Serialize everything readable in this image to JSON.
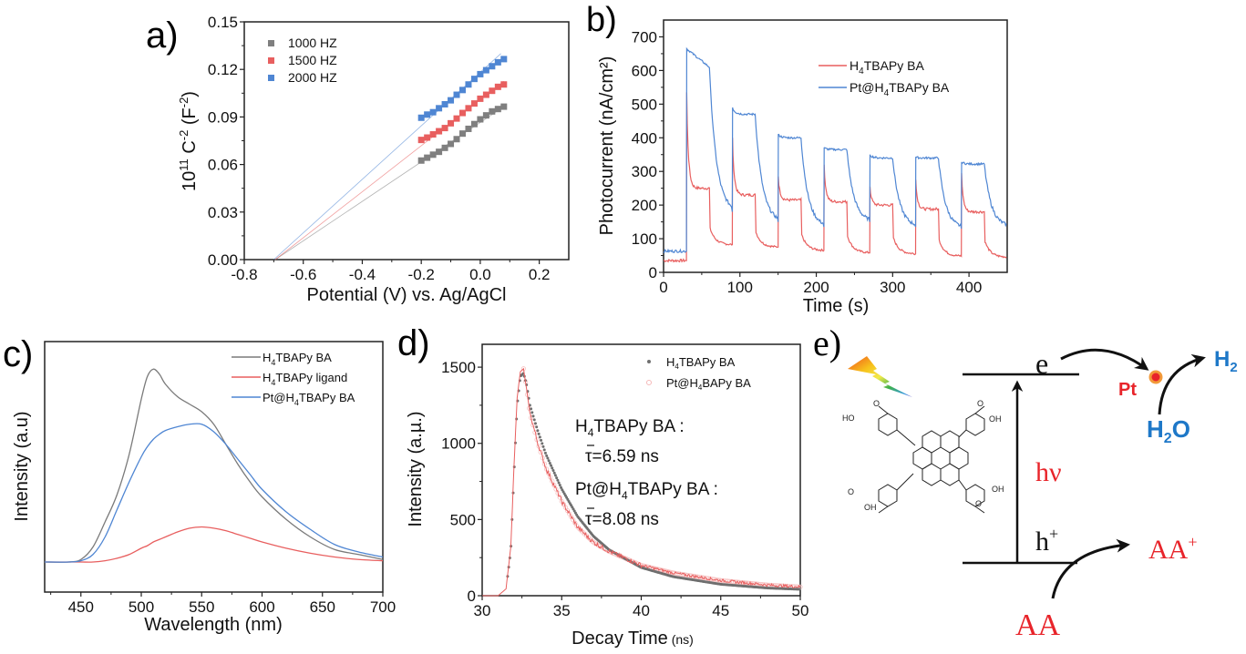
{
  "chart_data": [
    {
      "panel": "a)",
      "type": "scatter",
      "title": "",
      "xlabel": "Potential (V) vs. Ag/AgCl",
      "ylabel": "10^11 C^-2 (F^-2)",
      "ylabel_parts": {
        "base": "10",
        "exp1": "11",
        "mid": " C",
        "exp2": "-2",
        "mid2": " (F",
        "exp3": "-2",
        "end": ")"
      },
      "xlim": [
        -0.8,
        0.3
      ],
      "ylim": [
        0,
        0.15
      ],
      "xticks": [
        -0.8,
        -0.6,
        -0.4,
        -0.2,
        0.0,
        0.2
      ],
      "xtick_labels": [
        "-0.8",
        "-0.6",
        "-0.4",
        "-0.2",
        "0.0",
        "0.2"
      ],
      "yticks": [
        0,
        0.03,
        0.06,
        0.09,
        0.12,
        0.15
      ],
      "ytick_labels": [
        "0.00",
        "0.03",
        "0.06",
        "0.09",
        "0.12",
        "0.15"
      ],
      "legend_position": "top-left",
      "x": [
        -0.2,
        -0.18,
        -0.16,
        -0.14,
        -0.12,
        -0.1,
        -0.08,
        -0.06,
        -0.04,
        -0.02,
        0.0,
        0.02,
        0.04,
        0.06,
        0.08
      ],
      "series": [
        {
          "name": "1000 HZ",
          "color": "#7f7f7f",
          "values": [
            0.0625,
            0.0643,
            0.0662,
            0.068,
            0.0705,
            0.073,
            0.076,
            0.0795,
            0.0825,
            0.0855,
            0.0885,
            0.091,
            0.0935,
            0.095,
            0.0965
          ],
          "fit": {
            "x0": -0.695,
            "x1": 0.08,
            "y1": 0.0965
          }
        },
        {
          "name": "1500 HZ",
          "color": "#e85f5f",
          "values": [
            0.0755,
            0.077,
            0.079,
            0.081,
            0.083,
            0.086,
            0.089,
            0.0925,
            0.0955,
            0.0985,
            0.1015,
            0.104,
            0.1065,
            0.109,
            0.1105
          ],
          "fit": {
            "x0": -0.695,
            "x1": 0.08,
            "y1": 0.1125
          }
        },
        {
          "name": "2000 HZ",
          "color": "#4f86d3",
          "values": [
            0.0895,
            0.0915,
            0.093,
            0.0955,
            0.098,
            0.1005,
            0.104,
            0.107,
            0.1105,
            0.114,
            0.117,
            0.1195,
            0.122,
            0.1245,
            0.1265
          ],
          "fit": {
            "x0": -0.7,
            "x1": 0.07,
            "y1": 0.13
          }
        }
      ]
    },
    {
      "panel": "b)",
      "type": "line",
      "xlabel": "Time (s)",
      "ylabel": "Photocurrent (nA/cm²)",
      "xlim": [
        0,
        450
      ],
      "ylim": [
        0,
        750
      ],
      "xticks": [
        0,
        100,
        200,
        300,
        400
      ],
      "xtick_labels": [
        "0",
        "100",
        "200",
        "300",
        "400"
      ],
      "yticks": [
        0,
        100,
        200,
        300,
        400,
        500,
        600,
        700
      ],
      "ytick_labels": [
        "0",
        "100",
        "200",
        "300",
        "400",
        "500",
        "600",
        "700"
      ],
      "legend_position": "top-right",
      "light_on_times": [
        30,
        90,
        150,
        210,
        270,
        330,
        390
      ],
      "light_off_times": [
        60,
        120,
        180,
        240,
        300,
        360,
        420
      ],
      "series": [
        {
          "name": "H4TBAPy BA",
          "legend": {
            "a": "H",
            "sub": "4",
            "b": "TBAPy BA"
          },
          "color": "#e85f5f",
          "dark_baseline": 35,
          "cycles": [
            {
              "spike": 535,
              "plateau": 250,
              "dark_end": 82
            },
            {
              "spike": 400,
              "plateau": 230,
              "dark_end": 75
            },
            {
              "spike": 285,
              "plateau": 215,
              "dark_end": 65
            },
            {
              "spike": 320,
              "plateau": 210,
              "dark_end": 58
            },
            {
              "spike": 255,
              "plateau": 200,
              "dark_end": 55
            },
            {
              "spike": 275,
              "plateau": 188,
              "dark_end": 48
            },
            {
              "spike": 295,
              "plateau": 180,
              "dark_end": 45
            }
          ]
        },
        {
          "name": "Pt@H4TBAPy BA",
          "legend": {
            "a": "Pt@H",
            "sub": "4",
            "b": "TBAPy BA"
          },
          "color": "#4f86d3",
          "dark_baseline": 63,
          "cycles": [
            {
              "spike": 665,
              "plateau": 610,
              "dark_end": 180
            },
            {
              "spike": 490,
              "plateau": 470,
              "dark_end": 150
            },
            {
              "spike": 410,
              "plateau": 400,
              "dark_end": 135
            },
            {
              "spike": 370,
              "plateau": 365,
              "dark_end": 150
            },
            {
              "spike": 350,
              "plateau": 340,
              "dark_end": 135
            },
            {
              "spike": 342,
              "plateau": 340,
              "dark_end": 130
            },
            {
              "spike": 328,
              "plateau": 322,
              "dark_end": 135
            }
          ]
        }
      ]
    },
    {
      "panel": "c)",
      "type": "line",
      "xlabel": "Wavelength (nm)",
      "ylabel": "Intensity (a.u)",
      "xlim": [
        420,
        700
      ],
      "ylim": [
        0,
        1
      ],
      "xticks": [
        450,
        500,
        550,
        600,
        650,
        700
      ],
      "xtick_labels": [
        "450",
        "500",
        "550",
        "600",
        "650",
        "700"
      ],
      "legend_position": "top-right",
      "x": [
        420,
        440,
        450,
        460,
        470,
        480,
        490,
        500,
        505,
        510,
        515,
        520,
        530,
        540,
        550,
        560,
        570,
        580,
        590,
        600,
        620,
        640,
        660,
        680,
        700
      ],
      "series": [
        {
          "name": "H4TBAPy BA",
          "legend": {
            "a": "H",
            "sub": "4",
            "b": "TBAPy BA"
          },
          "color": "#7a7a7a",
          "values": [
            0.12,
            0.12,
            0.13,
            0.18,
            0.28,
            0.39,
            0.55,
            0.77,
            0.86,
            0.89,
            0.87,
            0.83,
            0.78,
            0.75,
            0.72,
            0.67,
            0.59,
            0.51,
            0.44,
            0.38,
            0.29,
            0.22,
            0.17,
            0.15,
            0.13
          ]
        },
        {
          "name": "H4TBAPy ligand",
          "legend": {
            "a": "H",
            "sub": "4",
            "b": "TBAPy ligand"
          },
          "color": "#e85f5f",
          "values": [
            0.12,
            0.12,
            0.12,
            0.12,
            0.125,
            0.135,
            0.15,
            0.175,
            0.185,
            0.2,
            0.21,
            0.22,
            0.24,
            0.255,
            0.26,
            0.255,
            0.245,
            0.23,
            0.215,
            0.2,
            0.175,
            0.155,
            0.14,
            0.13,
            0.125
          ]
        },
        {
          "name": "Pt@H4TBAPy BA",
          "legend": {
            "a": "Pt@H",
            "sub": "4",
            "b": "TBAPy BA"
          },
          "color": "#4f86d3",
          "values": [
            0.12,
            0.12,
            0.125,
            0.15,
            0.22,
            0.33,
            0.44,
            0.54,
            0.58,
            0.61,
            0.63,
            0.645,
            0.66,
            0.67,
            0.67,
            0.64,
            0.59,
            0.53,
            0.47,
            0.41,
            0.32,
            0.25,
            0.19,
            0.16,
            0.14
          ]
        }
      ]
    },
    {
      "panel": "d)",
      "type": "line",
      "xlabel": "Decay Time",
      "xlabel_unit": "(ns)",
      "ylabel": "Intensity (a.µ.)",
      "xlim": [
        30,
        50
      ],
      "ylim": [
        0,
        1650
      ],
      "xticks": [
        30,
        35,
        40,
        45,
        50
      ],
      "xtick_labels": [
        "30",
        "35",
        "40",
        "45",
        "50"
      ],
      "yticks": [
        0,
        500,
        1000,
        1500
      ],
      "ytick_labels": [
        "0",
        "500",
        "1000",
        "1500"
      ],
      "legend_position": "top-right",
      "x": [
        30,
        31,
        31.5,
        31.8,
        32.0,
        32.2,
        32.4,
        32.6,
        32.8,
        33.0,
        33.5,
        34,
        35,
        36,
        37,
        38,
        40,
        42,
        45,
        48,
        50
      ],
      "series": [
        {
          "name": "H4TBAPy BA",
          "legend": {
            "a": "H",
            "sub": "4",
            "b": "TBAPy BA"
          },
          "color": "#6f6f6f",
          "marker": "dot",
          "values": [
            0,
            0,
            40,
            300,
            800,
            1250,
            1440,
            1460,
            1380,
            1250,
            1080,
            930,
            700,
            520,
            390,
            300,
            185,
            125,
            75,
            50,
            42
          ]
        },
        {
          "name": "Pt@H4BAPy BA",
          "legend": {
            "a": "Pt@H",
            "sub": "4",
            "b": "BAPy BA"
          },
          "color": "#e85f5f",
          "marker": "circle",
          "values": [
            0,
            0,
            45,
            320,
            850,
            1300,
            1470,
            1490,
            1350,
            1200,
            1000,
            840,
            620,
            450,
            350,
            290,
            200,
            150,
            100,
            70,
            58
          ]
        }
      ],
      "annotations": [
        {
          "label_a": "H",
          "label_sub": "4",
          "label_b": "TBAPy BA :",
          "tau": "τ=6.59 ns"
        },
        {
          "label_a": "Pt@H",
          "label_sub": "4",
          "label_b": "TBAPy BA :",
          "tau": "τ=8.08 ns"
        }
      ]
    }
  ],
  "scheme": {
    "panel": "e)",
    "electron_label": "e",
    "hole_label": "h",
    "hole_sup": "+",
    "photon_label": "hν",
    "pt_label": "Pt",
    "h2_label": "H",
    "h2_sub": "2",
    "h2o_label_a": "H",
    "h2o_sub": "2",
    "h2o_label_b": "O",
    "aa_label": "AA",
    "aa_plus_label": "AA",
    "aa_plus_sup": "+",
    "molecule_groups": [
      "HO",
      "OH",
      "O",
      "OH",
      "O",
      "OH",
      "O",
      "OH",
      "O"
    ],
    "colors": {
      "red": "#e8242a",
      "blue": "#1e78c8",
      "black": "#111111",
      "pt_dot": "#f07820"
    }
  }
}
